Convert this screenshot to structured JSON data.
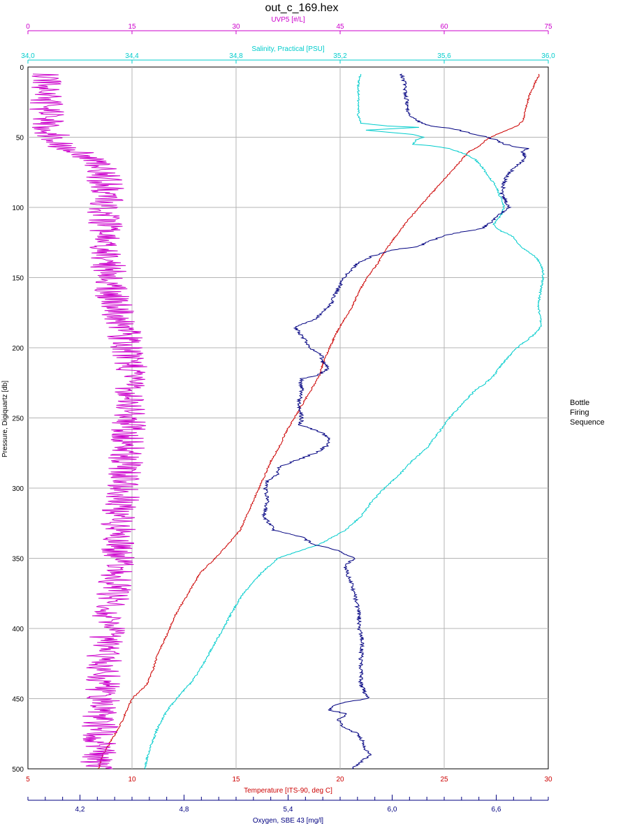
{
  "chart_data": {
    "type": "line",
    "title": "out_c_169.hex",
    "side_label": [
      "Bottle",
      "Firing",
      "Sequence"
    ],
    "y_axis": {
      "label": "Pressure, Digiquartz [db]",
      "range": [
        0,
        500
      ],
      "ticks": [
        0,
        50,
        100,
        150,
        200,
        250,
        300,
        350,
        400,
        450,
        500
      ],
      "reversed": true,
      "color": "#000000"
    },
    "top_axes": [
      {
        "id": "uvp5",
        "label": "UVP5 [#/L]",
        "range": [
          0,
          75
        ],
        "ticks": [
          0,
          15,
          30,
          45,
          60,
          75
        ],
        "tick_labels": [
          "0",
          "15",
          "30",
          "45",
          "60",
          "75"
        ],
        "color": "#cc00cc"
      },
      {
        "id": "salinity",
        "label": "Salinity, Practical [PSU]",
        "range": [
          34.0,
          36.0
        ],
        "ticks": [
          34.0,
          34.4,
          34.8,
          35.2,
          35.6,
          36.0
        ],
        "tick_labels": [
          "34,0",
          "34,4",
          "34,8",
          "35,2",
          "35,6",
          "36,0"
        ],
        "color": "#00cccc"
      }
    ],
    "bottom_axes": [
      {
        "id": "temperature",
        "label": "Temperature [ITS-90, deg C]",
        "range": [
          5,
          30
        ],
        "ticks": [
          5,
          10,
          15,
          20,
          25,
          30
        ],
        "tick_labels": [
          "5",
          "10",
          "15",
          "20",
          "25",
          "30"
        ],
        "color": "#cc0000"
      },
      {
        "id": "oxygen",
        "label": "Oxygen, SBE 43 [mg/l]",
        "range": [
          3.9,
          6.9
        ],
        "ticks": [
          4.2,
          4.8,
          5.4,
          6.0,
          6.6
        ],
        "tick_labels": [
          "4,2",
          "4,8",
          "5,4",
          "6,0",
          "6,6"
        ],
        "minor_step": 0.1,
        "color": "#000080"
      }
    ],
    "grid": true,
    "series": [
      {
        "name": "Temperature [ITS-90, deg C]",
        "axis": "temperature",
        "color": "#cc0000",
        "noise": 0.04,
        "profile": [
          [
            5,
            29.6
          ],
          [
            10,
            29.4
          ],
          [
            20,
            29.1
          ],
          [
            30,
            28.9
          ],
          [
            38,
            28.8
          ],
          [
            42,
            28.5
          ],
          [
            45,
            28.0
          ],
          [
            48,
            27.5
          ],
          [
            52,
            27.0
          ],
          [
            55,
            26.8
          ],
          [
            58,
            26.5
          ],
          [
            60,
            26.2
          ],
          [
            70,
            25.6
          ],
          [
            80,
            25.0
          ],
          [
            90,
            24.4
          ],
          [
            100,
            23.8
          ],
          [
            110,
            23.2
          ],
          [
            120,
            22.7
          ],
          [
            130,
            22.2
          ],
          [
            140,
            21.8
          ],
          [
            150,
            21.3
          ],
          [
            160,
            20.9
          ],
          [
            170,
            20.6
          ],
          [
            180,
            20.2
          ],
          [
            190,
            19.8
          ],
          [
            200,
            19.5
          ],
          [
            210,
            19.2
          ],
          [
            220,
            19.0
          ],
          [
            230,
            18.6
          ],
          [
            240,
            18.2
          ],
          [
            250,
            17.8
          ],
          [
            260,
            17.4
          ],
          [
            270,
            17.1
          ],
          [
            280,
            16.7
          ],
          [
            290,
            16.4
          ],
          [
            300,
            16.1
          ],
          [
            310,
            15.8
          ],
          [
            320,
            15.5
          ],
          [
            330,
            15.2
          ],
          [
            340,
            14.6
          ],
          [
            350,
            14.0
          ],
          [
            360,
            13.3
          ],
          [
            370,
            12.9
          ],
          [
            380,
            12.5
          ],
          [
            390,
            12.1
          ],
          [
            400,
            11.8
          ],
          [
            410,
            11.5
          ],
          [
            420,
            11.2
          ],
          [
            430,
            11.0
          ],
          [
            440,
            10.7
          ],
          [
            450,
            10.0
          ],
          [
            460,
            9.7
          ],
          [
            470,
            9.4
          ],
          [
            480,
            9.0
          ],
          [
            490,
            8.6
          ],
          [
            500,
            8.4
          ]
        ]
      },
      {
        "name": "Salinity, Practical [PSU]",
        "axis": "salinity",
        "color": "#00cccc",
        "noise": 0.004,
        "profile": [
          [
            5,
            35.28
          ],
          [
            10,
            35.27
          ],
          [
            15,
            35.27
          ],
          [
            25,
            35.27
          ],
          [
            35,
            35.27
          ],
          [
            40,
            35.28
          ],
          [
            42,
            35.38
          ],
          [
            43,
            35.5
          ],
          [
            45,
            35.3
          ],
          [
            48,
            35.48
          ],
          [
            50,
            35.52
          ],
          [
            52,
            35.49
          ],
          [
            55,
            35.48
          ],
          [
            56,
            35.55
          ],
          [
            58,
            35.62
          ],
          [
            62,
            35.68
          ],
          [
            66,
            35.72
          ],
          [
            70,
            35.74
          ],
          [
            75,
            35.76
          ],
          [
            80,
            35.78
          ],
          [
            85,
            35.8
          ],
          [
            90,
            35.81
          ],
          [
            95,
            35.82
          ],
          [
            100,
            35.83
          ],
          [
            105,
            35.82
          ],
          [
            110,
            35.8
          ],
          [
            112,
            35.79
          ],
          [
            115,
            35.8
          ],
          [
            117,
            35.82
          ],
          [
            120,
            35.86
          ],
          [
            125,
            35.88
          ],
          [
            130,
            35.91
          ],
          [
            135,
            35.95
          ],
          [
            140,
            35.97
          ],
          [
            145,
            35.98
          ],
          [
            150,
            35.98
          ],
          [
            160,
            35.97
          ],
          [
            170,
            35.96
          ],
          [
            180,
            35.97
          ],
          [
            185,
            35.97
          ],
          [
            190,
            35.95
          ],
          [
            200,
            35.88
          ],
          [
            210,
            35.83
          ],
          [
            220,
            35.79
          ],
          [
            225,
            35.76
          ],
          [
            230,
            35.72
          ],
          [
            240,
            35.67
          ],
          [
            250,
            35.62
          ],
          [
            260,
            35.58
          ],
          [
            270,
            35.54
          ],
          [
            280,
            35.48
          ],
          [
            290,
            35.43
          ],
          [
            300,
            35.37
          ],
          [
            310,
            35.32
          ],
          [
            320,
            35.28
          ],
          [
            330,
            35.22
          ],
          [
            340,
            35.12
          ],
          [
            345,
            35.04
          ],
          [
            350,
            34.96
          ],
          [
            360,
            34.9
          ],
          [
            370,
            34.85
          ],
          [
            380,
            34.81
          ],
          [
            390,
            34.78
          ],
          [
            400,
            34.75
          ],
          [
            410,
            34.72
          ],
          [
            420,
            34.69
          ],
          [
            430,
            34.66
          ],
          [
            440,
            34.62
          ],
          [
            450,
            34.57
          ],
          [
            460,
            34.53
          ],
          [
            470,
            34.5
          ],
          [
            480,
            34.48
          ],
          [
            490,
            34.46
          ],
          [
            500,
            34.45
          ]
        ]
      },
      {
        "name": "Oxygen, SBE 43 [mg/l]",
        "axis": "oxygen",
        "color": "#000080",
        "noise": 0.012,
        "profile": [
          [
            5,
            6.05
          ],
          [
            10,
            6.07
          ],
          [
            20,
            6.08
          ],
          [
            30,
            6.09
          ],
          [
            35,
            6.1
          ],
          [
            40,
            6.17
          ],
          [
            42,
            6.22
          ],
          [
            44,
            6.35
          ],
          [
            46,
            6.42
          ],
          [
            48,
            6.48
          ],
          [
            50,
            6.55
          ],
          [
            52,
            6.6
          ],
          [
            55,
            6.65
          ],
          [
            57,
            6.72
          ],
          [
            58,
            6.78
          ],
          [
            60,
            6.75
          ],
          [
            65,
            6.77
          ],
          [
            70,
            6.72
          ],
          [
            75,
            6.68
          ],
          [
            80,
            6.65
          ],
          [
            90,
            6.63
          ],
          [
            100,
            6.67
          ],
          [
            105,
            6.62
          ],
          [
            110,
            6.58
          ],
          [
            115,
            6.52
          ],
          [
            118,
            6.38
          ],
          [
            120,
            6.3
          ],
          [
            125,
            6.2
          ],
          [
            128,
            6.15
          ],
          [
            130,
            6.02
          ],
          [
            135,
            5.88
          ],
          [
            140,
            5.8
          ],
          [
            150,
            5.72
          ],
          [
            160,
            5.68
          ],
          [
            170,
            5.64
          ],
          [
            180,
            5.55
          ],
          [
            185,
            5.44
          ],
          [
            190,
            5.47
          ],
          [
            195,
            5.5
          ],
          [
            200,
            5.52
          ],
          [
            205,
            5.59
          ],
          [
            210,
            5.6
          ],
          [
            215,
            5.63
          ],
          [
            220,
            5.57
          ],
          [
            222,
            5.48
          ],
          [
            225,
            5.47
          ],
          [
            230,
            5.48
          ],
          [
            240,
            5.46
          ],
          [
            250,
            5.48
          ],
          [
            255,
            5.47
          ],
          [
            260,
            5.59
          ],
          [
            265,
            5.64
          ],
          [
            270,
            5.62
          ],
          [
            275,
            5.56
          ],
          [
            280,
            5.45
          ],
          [
            285,
            5.35
          ],
          [
            290,
            5.34
          ],
          [
            295,
            5.28
          ],
          [
            300,
            5.27
          ],
          [
            310,
            5.28
          ],
          [
            320,
            5.26
          ],
          [
            325,
            5.29
          ],
          [
            330,
            5.32
          ],
          [
            335,
            5.48
          ],
          [
            340,
            5.55
          ],
          [
            345,
            5.7
          ],
          [
            350,
            5.78
          ],
          [
            355,
            5.73
          ],
          [
            360,
            5.74
          ],
          [
            370,
            5.77
          ],
          [
            380,
            5.79
          ],
          [
            390,
            5.81
          ],
          [
            400,
            5.81
          ],
          [
            410,
            5.83
          ],
          [
            420,
            5.82
          ],
          [
            430,
            5.82
          ],
          [
            440,
            5.82
          ],
          [
            445,
            5.84
          ],
          [
            450,
            5.86
          ],
          [
            452,
            5.75
          ],
          [
            455,
            5.66
          ],
          [
            458,
            5.64
          ],
          [
            461,
            5.74
          ],
          [
            465,
            5.69
          ],
          [
            470,
            5.72
          ],
          [
            475,
            5.8
          ],
          [
            480,
            5.83
          ],
          [
            485,
            5.84
          ],
          [
            490,
            5.87
          ],
          [
            495,
            5.82
          ],
          [
            500,
            5.77
          ]
        ]
      },
      {
        "name": "UVP5 [#/L]",
        "axis": "uvp5",
        "color": "#cc00cc",
        "noise": 2.6,
        "profile": [
          [
            5,
            2.5
          ],
          [
            20,
            2.6
          ],
          [
            30,
            2.7
          ],
          [
            40,
            2.9
          ],
          [
            45,
            3.2
          ],
          [
            50,
            3.8
          ],
          [
            55,
            5.0
          ],
          [
            60,
            6.5
          ],
          [
            65,
            8.5
          ],
          [
            70,
            10.5
          ],
          [
            80,
            11.0
          ],
          [
            90,
            11.5
          ],
          [
            100,
            11.0
          ],
          [
            110,
            11.2
          ],
          [
            120,
            10.8
          ],
          [
            130,
            11.0
          ],
          [
            140,
            11.5
          ],
          [
            150,
            11.8
          ],
          [
            160,
            12.0
          ],
          [
            170,
            12.5
          ],
          [
            180,
            13.5
          ],
          [
            200,
            14.2
          ],
          [
            220,
            15.0
          ],
          [
            240,
            14.8
          ],
          [
            260,
            14.5
          ],
          [
            280,
            14.0
          ],
          [
            300,
            13.8
          ],
          [
            320,
            13.2
          ],
          [
            340,
            12.8
          ],
          [
            360,
            13.0
          ],
          [
            380,
            12.0
          ],
          [
            400,
            11.5
          ],
          [
            420,
            11.0
          ],
          [
            440,
            10.8
          ],
          [
            460,
            10.5
          ],
          [
            480,
            10.2
          ],
          [
            500,
            10.0
          ]
        ]
      }
    ]
  }
}
